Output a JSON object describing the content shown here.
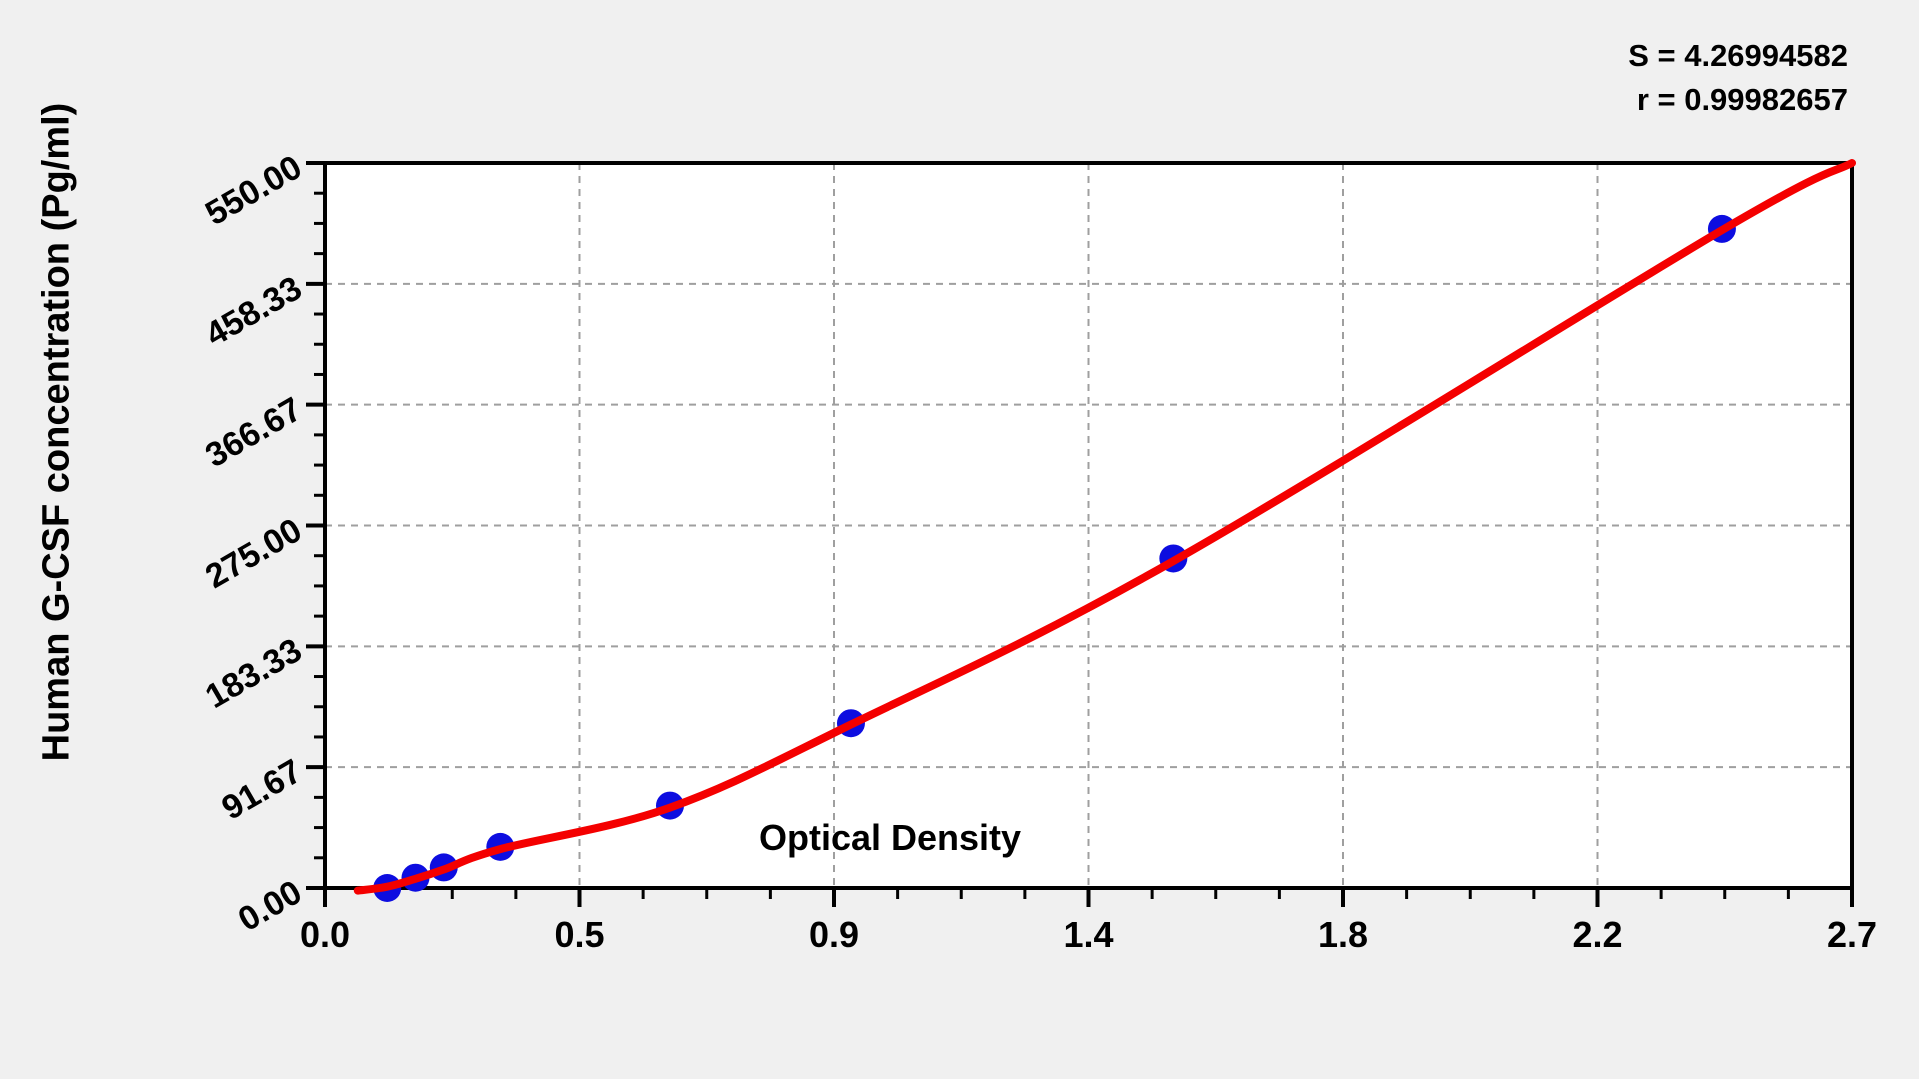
{
  "header": {
    "s_stat": "S = 4.26994582",
    "r_stat": "r = 0.99982657"
  },
  "chart_data": {
    "type": "scatter",
    "title": "",
    "xlabel": "Optical Density",
    "ylabel": "Human G-CSF concentration (Pg/ml)",
    "xlim": [
      0,
      2.7
    ],
    "ylim": [
      0,
      550
    ],
    "grid": true,
    "legend": "none",
    "annotations": {
      "s": "S = 4.26994582",
      "r": "r = 0.99982657"
    },
    "fit_stats": {
      "S": 4.26994582,
      "r": 0.99982657
    },
    "x_ticks": [
      {
        "value": 0.0,
        "label": "0.0"
      },
      {
        "value": 0.45,
        "label": "0.5"
      },
      {
        "value": 0.9,
        "label": "0.9"
      },
      {
        "value": 1.35,
        "label": "1.4"
      },
      {
        "value": 1.8,
        "label": "1.8"
      },
      {
        "value": 2.25,
        "label": "2.2"
      },
      {
        "value": 2.7,
        "label": "2.7"
      }
    ],
    "y_ticks": [
      {
        "value": 0,
        "label": "0.00"
      },
      {
        "value": 91.67,
        "label": "91.67"
      },
      {
        "value": 183.33,
        "label": "183.33"
      },
      {
        "value": 275,
        "label": "275.00"
      },
      {
        "value": 366.67,
        "label": "366.67"
      },
      {
        "value": 458.33,
        "label": "458.33"
      },
      {
        "value": 550,
        "label": "550.00"
      }
    ],
    "x_minor_divisions": 4,
    "y_minor_divisions": 4,
    "series": [
      {
        "name": "standard-points",
        "type": "scatter",
        "color": "#0d0de0",
        "points": [
          {
            "od": 0.11,
            "conc": 0
          },
          {
            "od": 0.16,
            "conc": 7.8
          },
          {
            "od": 0.21,
            "conc": 15.6
          },
          {
            "od": 0.31,
            "conc": 31.2
          },
          {
            "od": 0.61,
            "conc": 62.5
          },
          {
            "od": 0.93,
            "conc": 125
          },
          {
            "od": 1.5,
            "conc": 250
          },
          {
            "od": 2.47,
            "conc": 500
          }
        ]
      },
      {
        "name": "fitted-curve",
        "type": "line",
        "color": "#f40000",
        "points": [
          {
            "od": 0.058,
            "conc": -2
          },
          {
            "od": 0.11,
            "conc": 1
          },
          {
            "od": 0.16,
            "conc": 7
          },
          {
            "od": 0.21,
            "conc": 14
          },
          {
            "od": 0.31,
            "conc": 29.5
          },
          {
            "od": 0.61,
            "conc": 61
          },
          {
            "od": 0.93,
            "conc": 124
          },
          {
            "od": 1.5,
            "conc": 248
          },
          {
            "od": 2.47,
            "conc": 499
          },
          {
            "od": 2.7,
            "conc": 550
          }
        ]
      }
    ]
  },
  "colors": {
    "background": "#f0f0f0",
    "plot_background": "#ffffff",
    "axis": "#000000",
    "grid": "#9f9f9f",
    "curve": "#f40000",
    "points": "#0d0de0",
    "text": "#000000"
  }
}
